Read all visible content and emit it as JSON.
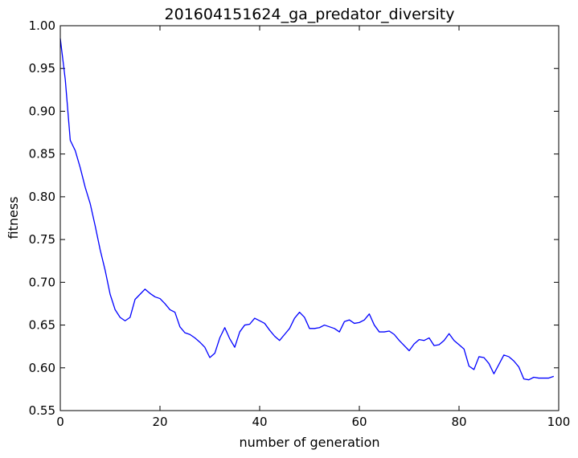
{
  "chart_data": {
    "type": "line",
    "title": "201604151624_ga_predator_diversity",
    "xlabel": "number of generation",
    "ylabel": "fitness",
    "xlim": [
      0,
      100
    ],
    "ylim": [
      0.55,
      1.0
    ],
    "xticks": [
      0,
      20,
      40,
      60,
      80,
      100
    ],
    "xtick_labels": [
      "0",
      "20",
      "40",
      "60",
      "80",
      "100"
    ],
    "yticks": [
      0.55,
      0.6,
      0.65,
      0.7,
      0.75,
      0.8,
      0.85,
      0.9,
      0.95,
      1.0
    ],
    "ytick_labels": [
      "0.55",
      "0.60",
      "0.65",
      "0.70",
      "0.75",
      "0.80",
      "0.85",
      "0.90",
      "0.95",
      "1.00"
    ],
    "grid": false,
    "series": [
      {
        "color": "#0000ff",
        "x": [
          0,
          1,
          2,
          3,
          4,
          5,
          6,
          7,
          8,
          9,
          10,
          11,
          12,
          13,
          14,
          15,
          16,
          17,
          18,
          19,
          20,
          21,
          22,
          23,
          24,
          25,
          26,
          27,
          28,
          29,
          30,
          31,
          32,
          33,
          34,
          35,
          36,
          37,
          38,
          39,
          40,
          41,
          42,
          43,
          44,
          45,
          46,
          47,
          48,
          49,
          50,
          51,
          52,
          53,
          54,
          55,
          56,
          57,
          58,
          59,
          60,
          61,
          62,
          63,
          64,
          65,
          66,
          67,
          68,
          69,
          70,
          71,
          72,
          73,
          74,
          75,
          76,
          77,
          78,
          79,
          80,
          81,
          82,
          83,
          84,
          85,
          86,
          87,
          88,
          89,
          90,
          91,
          92,
          93,
          94,
          95,
          96,
          97,
          98,
          99
        ],
        "y": [
          0.985,
          0.937,
          0.866,
          0.854,
          0.834,
          0.811,
          0.792,
          0.766,
          0.738,
          0.714,
          0.686,
          0.668,
          0.659,
          0.655,
          0.659,
          0.68,
          0.686,
          0.692,
          0.687,
          0.683,
          0.681,
          0.675,
          0.668,
          0.665,
          0.648,
          0.641,
          0.639,
          0.635,
          0.63,
          0.624,
          0.612,
          0.617,
          0.635,
          0.647,
          0.634,
          0.624,
          0.642,
          0.65,
          0.651,
          0.658,
          0.655,
          0.652,
          0.644,
          0.637,
          0.632,
          0.639,
          0.646,
          0.658,
          0.665,
          0.659,
          0.646,
          0.646,
          0.647,
          0.65,
          0.648,
          0.646,
          0.642,
          0.654,
          0.656,
          0.652,
          0.653,
          0.656,
          0.663,
          0.65,
          0.642,
          0.642,
          0.643,
          0.639,
          0.632,
          0.626,
          0.62,
          0.628,
          0.633,
          0.632,
          0.635,
          0.626,
          0.627,
          0.632,
          0.64,
          0.632,
          0.627,
          0.622,
          0.602,
          0.598,
          0.613,
          0.612,
          0.605,
          0.593,
          0.604,
          0.615,
          0.613,
          0.608,
          0.601,
          0.587,
          0.586,
          0.589,
          0.588,
          0.588,
          0.588,
          0.59
        ]
      }
    ]
  }
}
